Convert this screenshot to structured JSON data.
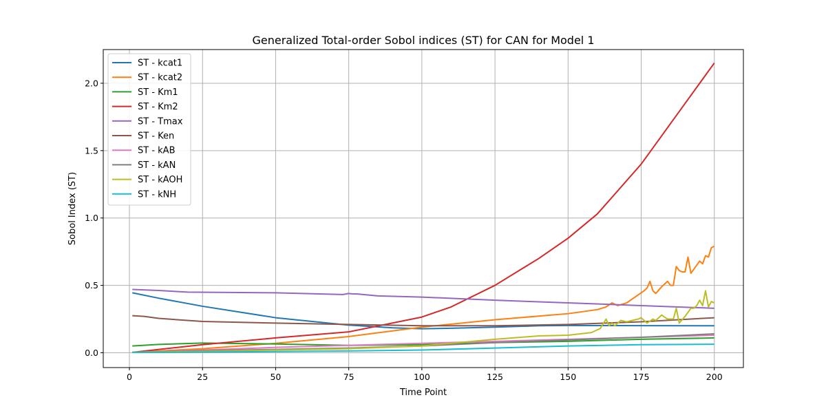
{
  "chart_data": {
    "type": "line",
    "title": "Generalized Total-order Sobol indices (ST) for CAN for Model 1",
    "xlabel": "Time Point",
    "ylabel": "Sobol Index (ST)",
    "xlim": [
      -8.95,
      209.95
    ],
    "ylim": [
      -0.11,
      2.25
    ],
    "xticks": [
      0,
      25,
      50,
      75,
      100,
      125,
      150,
      175,
      200
    ],
    "xtick_labels": [
      "0",
      "25",
      "50",
      "75",
      "100",
      "125",
      "150",
      "175",
      "200"
    ],
    "yticks": [
      0.0,
      0.5,
      1.0,
      1.5,
      2.0
    ],
    "ytick_labels": [
      "0.0",
      "0.5",
      "1.0",
      "1.5",
      "2.0"
    ],
    "grid": true,
    "legend_position": "upper-left",
    "series": [
      {
        "name": "ST - kcat1",
        "color": "#1f77b4",
        "x": [
          1,
          10,
          25,
          50,
          75,
          90,
          100,
          110,
          125,
          140,
          150,
          175,
          200
        ],
        "y": [
          0.445,
          0.405,
          0.345,
          0.26,
          0.205,
          0.185,
          0.178,
          0.182,
          0.19,
          0.2,
          0.202,
          0.201,
          0.2
        ]
      },
      {
        "name": "ST - kcat2",
        "color": "#ff7f0e",
        "x": [
          1,
          25,
          50,
          75,
          100,
          125,
          150,
          160,
          163,
          165,
          167,
          170,
          172,
          174,
          176,
          177,
          178,
          179,
          180,
          182,
          184,
          185,
          186,
          187,
          188,
          189,
          190,
          191,
          192,
          193,
          194,
          195,
          196,
          197,
          198,
          199,
          200
        ],
        "y": [
          0.003,
          0.03,
          0.07,
          0.12,
          0.19,
          0.245,
          0.29,
          0.32,
          0.34,
          0.37,
          0.35,
          0.37,
          0.4,
          0.43,
          0.46,
          0.48,
          0.53,
          0.46,
          0.44,
          0.49,
          0.53,
          0.5,
          0.5,
          0.64,
          0.61,
          0.6,
          0.6,
          0.71,
          0.59,
          0.62,
          0.65,
          0.68,
          0.66,
          0.72,
          0.71,
          0.78,
          0.79
        ]
      },
      {
        "name": "ST - Km1",
        "color": "#2ca02c",
        "x": [
          1,
          10,
          25,
          50,
          75,
          100,
          125,
          150,
          175,
          200
        ],
        "y": [
          0.05,
          0.062,
          0.072,
          0.065,
          0.055,
          0.06,
          0.075,
          0.085,
          0.1,
          0.11
        ]
      },
      {
        "name": "ST - Km2",
        "color": "#d62728",
        "x": [
          1,
          25,
          50,
          75,
          100,
          110,
          125,
          140,
          150,
          160,
          175,
          190,
          200
        ],
        "y": [
          0.003,
          0.06,
          0.11,
          0.155,
          0.265,
          0.34,
          0.5,
          0.7,
          0.85,
          1.03,
          1.4,
          1.85,
          2.15
        ]
      },
      {
        "name": "ST - Tmax",
        "color": "#9467bd",
        "x": [
          1,
          10,
          20,
          50,
          73,
          75,
          76,
          78,
          85,
          100,
          125,
          150,
          175,
          200
        ],
        "y": [
          0.47,
          0.462,
          0.45,
          0.445,
          0.432,
          0.44,
          0.437,
          0.436,
          0.422,
          0.413,
          0.39,
          0.37,
          0.35,
          0.33
        ]
      },
      {
        "name": "ST - Ken",
        "color": "#8c564b",
        "x": [
          1,
          5,
          10,
          25,
          50,
          75,
          100,
          125,
          150,
          175,
          200
        ],
        "y": [
          0.275,
          0.27,
          0.255,
          0.232,
          0.22,
          0.21,
          0.2,
          0.2,
          0.21,
          0.23,
          0.26
        ]
      },
      {
        "name": "ST - kAB",
        "color": "#e377c2",
        "x": [
          1,
          25,
          50,
          75,
          100,
          125,
          150,
          175,
          200
        ],
        "y": [
          0.003,
          0.02,
          0.04,
          0.055,
          0.07,
          0.085,
          0.1,
          0.115,
          0.13
        ]
      },
      {
        "name": "ST - kAN",
        "color": "#7f7f7f",
        "x": [
          1,
          25,
          50,
          75,
          100,
          125,
          150,
          175,
          200
        ],
        "y": [
          0.003,
          0.015,
          0.025,
          0.035,
          0.05,
          0.075,
          0.095,
          0.115,
          0.14
        ]
      },
      {
        "name": "ST - kAOH",
        "color": "#bcbd22",
        "x": [
          1,
          25,
          50,
          75,
          100,
          125,
          140,
          150,
          158,
          161,
          163,
          164,
          165,
          166,
          168,
          170,
          172,
          174,
          175,
          177,
          179,
          180,
          182,
          184,
          186,
          187,
          188,
          190,
          192,
          193,
          194,
          195,
          196,
          197,
          198,
          199,
          200
        ],
        "y": [
          0.003,
          0.01,
          0.02,
          0.03,
          0.05,
          0.1,
          0.125,
          0.13,
          0.15,
          0.18,
          0.25,
          0.2,
          0.22,
          0.2,
          0.24,
          0.23,
          0.24,
          0.25,
          0.26,
          0.22,
          0.25,
          0.24,
          0.28,
          0.25,
          0.25,
          0.33,
          0.22,
          0.27,
          0.33,
          0.33,
          0.35,
          0.39,
          0.35,
          0.46,
          0.34,
          0.38,
          0.37
        ]
      },
      {
        "name": "ST - kNH",
        "color": "#17becf",
        "x": [
          1,
          25,
          50,
          75,
          100,
          125,
          150,
          175,
          200
        ],
        "y": [
          0.002,
          0.005,
          0.009,
          0.013,
          0.02,
          0.035,
          0.05,
          0.06,
          0.063
        ]
      }
    ]
  }
}
